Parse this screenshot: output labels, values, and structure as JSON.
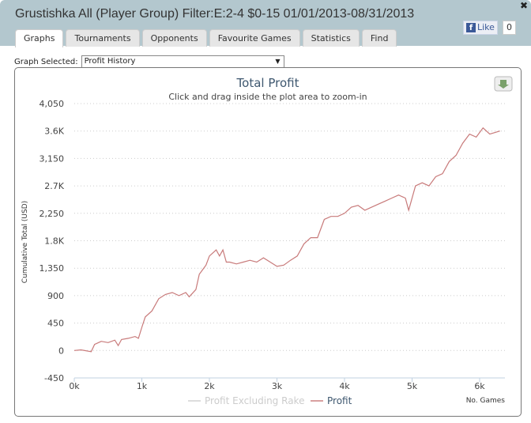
{
  "window": {
    "title": "Grustishka All (Player Group) Filter:E:2-4 $0-15 01/01/2013-08/31/2013",
    "close": "✖"
  },
  "tabs": [
    {
      "label": "Graphs"
    },
    {
      "label": "Tournaments"
    },
    {
      "label": "Opponents"
    },
    {
      "label": "Favourite Games"
    },
    {
      "label": "Statistics"
    },
    {
      "label": "Find"
    }
  ],
  "facebook": {
    "like": "Like",
    "count": "0",
    "f": "f"
  },
  "graph_select": {
    "label": "Graph Selected:",
    "value": "Profit History"
  },
  "chart_data": {
    "type": "line",
    "title": "Total Profit",
    "subtitle": "Click and drag inside the plot area to zoom-in",
    "xlabel": "No. Games",
    "ylabel": "Cumulative Total (USD)",
    "xlim": [
      0,
      6400
    ],
    "ylim": [
      -450,
      4050
    ],
    "x_ticks": [
      {
        "v": 0,
        "label": "0k"
      },
      {
        "v": 1000,
        "label": "1k"
      },
      {
        "v": 2000,
        "label": "2k"
      },
      {
        "v": 3000,
        "label": "3k"
      },
      {
        "v": 4000,
        "label": "4k"
      },
      {
        "v": 5000,
        "label": "5k"
      },
      {
        "v": 6000,
        "label": "6k"
      }
    ],
    "y_ticks": [
      {
        "v": -450,
        "label": "-450"
      },
      {
        "v": 0,
        "label": "0"
      },
      {
        "v": 450,
        "label": "450"
      },
      {
        "v": 900,
        "label": "900"
      },
      {
        "v": 1350,
        "label": "1,350"
      },
      {
        "v": 1800,
        "label": "1.8K"
      },
      {
        "v": 2250,
        "label": "2,250"
      },
      {
        "v": 2700,
        "label": "2.7K"
      },
      {
        "v": 3150,
        "label": "3,150"
      },
      {
        "v": 3600,
        "label": "3.6K"
      },
      {
        "v": 4050,
        "label": "4,050"
      }
    ],
    "grid": true,
    "legend": {
      "placement": "bottom",
      "entries": [
        {
          "name": "Profit Excluding Rake",
          "color": "#dddddd",
          "hidden": true
        },
        {
          "name": "Profit",
          "color": "#c87a7a"
        }
      ]
    },
    "series": [
      {
        "name": "Profit",
        "color": "#c87a7a",
        "x": [
          0,
          100,
          250,
          300,
          400,
          500,
          600,
          650,
          700,
          800,
          900,
          950,
          1000,
          1050,
          1150,
          1250,
          1350,
          1450,
          1550,
          1650,
          1700,
          1800,
          1850,
          1950,
          2000,
          2050,
          2100,
          2150,
          2200,
          2250,
          2300,
          2400,
          2500,
          2600,
          2700,
          2800,
          2900,
          3000,
          3100,
          3200,
          3300,
          3400,
          3500,
          3600,
          3700,
          3800,
          3900,
          4000,
          4100,
          4200,
          4300,
          4400,
          4500,
          4600,
          4700,
          4800,
          4900,
          4950,
          5050,
          5150,
          5250,
          5350,
          5450,
          5550,
          5650,
          5750,
          5850,
          5950,
          6050,
          6150,
          6300
        ],
        "y": [
          0,
          10,
          -20,
          100,
          150,
          130,
          170,
          80,
          180,
          200,
          230,
          200,
          380,
          550,
          650,
          850,
          920,
          950,
          900,
          950,
          880,
          1000,
          1250,
          1400,
          1550,
          1600,
          1650,
          1550,
          1650,
          1450,
          1450,
          1420,
          1450,
          1480,
          1450,
          1520,
          1450,
          1380,
          1400,
          1480,
          1550,
          1750,
          1850,
          1850,
          2150,
          2200,
          2200,
          2250,
          2350,
          2380,
          2300,
          2350,
          2400,
          2450,
          2500,
          2550,
          2500,
          2300,
          2700,
          2750,
          2700,
          2850,
          2900,
          3100,
          3200,
          3400,
          3550,
          3500,
          3650,
          3550,
          3600
        ]
      }
    ]
  }
}
